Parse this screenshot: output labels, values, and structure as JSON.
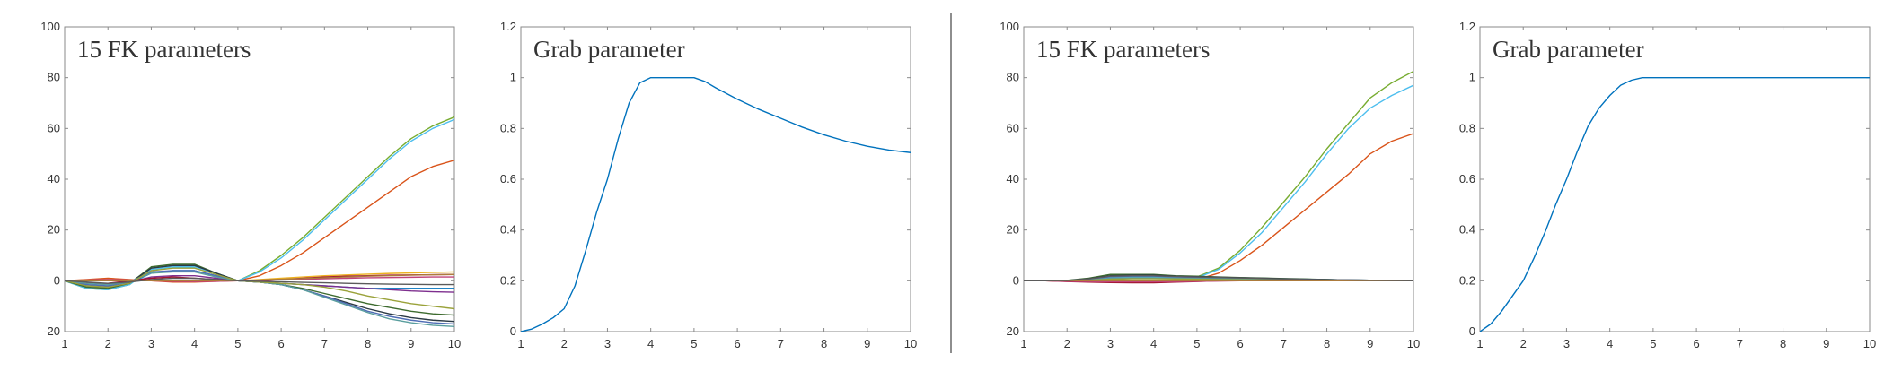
{
  "chart_data": [
    {
      "type": "line",
      "title": "15 FK parameters",
      "xlabel": "",
      "ylabel": "",
      "xlim": [
        1,
        10
      ],
      "ylim": [
        -20,
        100
      ],
      "xticks": [
        1,
        2,
        3,
        4,
        5,
        6,
        7,
        8,
        9,
        10
      ],
      "yticks": [
        -20,
        0,
        20,
        40,
        60,
        80,
        100
      ],
      "grid": false,
      "x": [
        1,
        1.5,
        2,
        2.5,
        3,
        3.5,
        4,
        4.5,
        5,
        5.5,
        6,
        6.5,
        7,
        7.5,
        8,
        8.5,
        9,
        9.5,
        10
      ],
      "series": [
        {
          "color": "#0072BD",
          "values": [
            0,
            -2,
            -2.5,
            -1,
            3,
            4,
            4,
            2,
            0,
            -0.5,
            -1,
            -1.5,
            -2,
            -2.5,
            -3,
            -3,
            -3,
            -3,
            -3
          ]
        },
        {
          "color": "#D95319",
          "values": [
            0,
            0.5,
            1,
            0.5,
            0,
            -0.5,
            -0.5,
            -0.2,
            0,
            2,
            6,
            11,
            17,
            23,
            29,
            35,
            41,
            45,
            47.5
          ]
        },
        {
          "color": "#EDB120",
          "values": [
            0,
            0.3,
            0.5,
            0.3,
            0.2,
            0,
            -0.2,
            0,
            0,
            0.5,
            1,
            1.5,
            2,
            2.3,
            2.6,
            2.9,
            3.1,
            3.3,
            3.5
          ]
        },
        {
          "color": "#7E2F8E",
          "values": [
            0,
            -1,
            -1.5,
            -0.5,
            1.5,
            2,
            2,
            1,
            0,
            -0.5,
            -1,
            -1.5,
            -2,
            -2.5,
            -3,
            -3.5,
            -4,
            -4.3,
            -4.5
          ]
        },
        {
          "color": "#77AC30",
          "values": [
            0,
            -3,
            -3.5,
            -1.5,
            5,
            6,
            6,
            3,
            0,
            4,
            10,
            17,
            25,
            33,
            41,
            49,
            56,
            61,
            64.5
          ]
        },
        {
          "color": "#4DBEEE",
          "values": [
            0,
            -3,
            -3.5,
            -1.5,
            4.5,
            5.5,
            5.5,
            3,
            0,
            3.5,
            9,
            16,
            24,
            32,
            40,
            48,
            55,
            60,
            63.5
          ]
        },
        {
          "color": "#A2142F",
          "values": [
            0,
            -1,
            -1,
            0,
            1,
            1.5,
            1,
            0.5,
            0,
            0,
            0.5,
            1,
            1.5,
            1.8,
            2,
            2.2,
            2.3,
            2.4,
            2.5
          ]
        },
        {
          "color": "#3D6B2F",
          "values": [
            0,
            -2.5,
            -3,
            -1,
            5.5,
            6.5,
            6.5,
            3,
            0,
            -0.5,
            -1.5,
            -3,
            -5,
            -7,
            -9,
            -10.5,
            -12,
            -13,
            -13.5
          ]
        },
        {
          "color": "#2B3A45",
          "values": [
            0,
            -2,
            -2.5,
            -1,
            5,
            6,
            6,
            3,
            0,
            -0.5,
            -1.5,
            -3.5,
            -6,
            -8.5,
            -11,
            -13,
            -14.5,
            -15.5,
            -16
          ]
        },
        {
          "color": "#4F6DB5",
          "values": [
            0,
            -1.5,
            -2,
            -0.5,
            3.5,
            4,
            4,
            2,
            0,
            -0.5,
            -1.5,
            -3.5,
            -6,
            -9,
            -12,
            -14,
            -15.5,
            -16.5,
            -17
          ]
        },
        {
          "color": "#5A9E9E",
          "values": [
            0,
            -1,
            -1.5,
            -0.5,
            3,
            3.5,
            3.5,
            1.5,
            0,
            -0.5,
            -1.5,
            -3.5,
            -6.5,
            -9.5,
            -12.5,
            -15,
            -16.5,
            -17.5,
            -18
          ]
        },
        {
          "color": "#9AA23A",
          "values": [
            0,
            -2,
            -2.5,
            -1,
            4,
            5,
            5,
            2.5,
            0,
            -0.5,
            -1,
            -1.5,
            -2.5,
            -4,
            -6,
            -7.5,
            -9,
            -10,
            -11
          ]
        },
        {
          "color": "#C1447A",
          "values": [
            0,
            0.3,
            0.5,
            0.3,
            0,
            -0.2,
            -0.3,
            -0.2,
            0,
            0.2,
            0.4,
            0.6,
            0.8,
            1,
            1.2,
            1.3,
            1.4,
            1.5,
            1.5
          ]
        },
        {
          "color": "#AD7B3C",
          "values": [
            0,
            0,
            0,
            0,
            0,
            0,
            0,
            0,
            0,
            0.3,
            0.6,
            0.9,
            1.2,
            1.5,
            1.8,
            2,
            2.2,
            2.4,
            2.5
          ]
        },
        {
          "color": "#5B5B5B",
          "values": [
            0,
            -0.5,
            -1,
            -0.5,
            0.5,
            1,
            1,
            0.5,
            0,
            -0.2,
            -0.4,
            -0.6,
            -0.8,
            -1,
            -1.2,
            -1.3,
            -1.4,
            -1.5,
            -1.5
          ]
        }
      ]
    },
    {
      "type": "line",
      "title": "Grab parameter",
      "xlabel": "",
      "ylabel": "",
      "xlim": [
        1,
        10
      ],
      "ylim": [
        0,
        1.2
      ],
      "xticks": [
        1,
        2,
        3,
        4,
        5,
        6,
        7,
        8,
        9,
        10
      ],
      "yticks": [
        0,
        0.2,
        0.4,
        0.6,
        0.8,
        1,
        1.2
      ],
      "grid": false,
      "x": [
        1,
        1.25,
        1.5,
        1.75,
        2,
        2.25,
        2.5,
        2.75,
        3,
        3.25,
        3.5,
        3.75,
        4,
        4.5,
        5,
        5.25,
        5.5,
        6,
        6.5,
        7,
        7.5,
        8,
        8.5,
        9,
        9.5,
        10
      ],
      "series": [
        {
          "color": "#0072BD",
          "values": [
            0,
            0.01,
            0.03,
            0.055,
            0.09,
            0.18,
            0.32,
            0.47,
            0.6,
            0.76,
            0.9,
            0.98,
            1,
            1,
            1,
            0.985,
            0.96,
            0.915,
            0.875,
            0.84,
            0.805,
            0.775,
            0.75,
            0.73,
            0.715,
            0.705
          ]
        }
      ]
    },
    {
      "type": "line",
      "title": "15 FK parameters",
      "xlabel": "",
      "ylabel": "",
      "xlim": [
        1,
        10
      ],
      "ylim": [
        -20,
        100
      ],
      "xticks": [
        1,
        2,
        3,
        4,
        5,
        6,
        7,
        8,
        9,
        10
      ],
      "yticks": [
        -20,
        0,
        20,
        40,
        60,
        80,
        100
      ],
      "grid": false,
      "x": [
        1,
        1.5,
        2,
        2.5,
        3,
        3.5,
        4,
        4.5,
        5,
        5.5,
        6,
        6.5,
        7,
        7.5,
        8,
        8.5,
        9,
        9.5,
        10
      ],
      "series": [
        {
          "color": "#0072BD",
          "values": [
            0,
            0,
            0,
            0.5,
            1.5,
            2,
            2,
            1.8,
            1.5,
            1.3,
            1.2,
            1,
            0.8,
            0.6,
            0.5,
            0.3,
            0.2,
            0.1,
            0
          ]
        },
        {
          "color": "#D95319",
          "values": [
            0,
            0,
            -0.2,
            -0.4,
            -0.5,
            -0.5,
            -0.5,
            0,
            0.5,
            3,
            8,
            14,
            21,
            28,
            35,
            42,
            50,
            55,
            58
          ]
        },
        {
          "color": "#EDB120",
          "values": [
            0,
            0,
            0,
            0,
            0,
            0,
            0,
            0,
            0,
            0,
            0,
            0,
            0,
            0,
            0,
            0,
            0,
            0,
            0
          ]
        },
        {
          "color": "#7E2F8E",
          "values": [
            0,
            0,
            0,
            0.3,
            0.8,
            1,
            1,
            0.9,
            0.8,
            0.7,
            0.6,
            0.5,
            0.4,
            0.3,
            0.2,
            0.1,
            0.1,
            0,
            0
          ]
        },
        {
          "color": "#77AC30",
          "values": [
            0,
            0,
            0.2,
            0.5,
            1.5,
            2,
            2,
            1.5,
            1.5,
            5,
            12,
            21,
            31,
            41,
            52,
            62,
            72,
            78,
            82.5
          ]
        },
        {
          "color": "#4DBEEE",
          "values": [
            0,
            0,
            0.1,
            0.4,
            1.2,
            1.5,
            1.5,
            1.2,
            1.2,
            4.5,
            11,
            19,
            29,
            39,
            50,
            60,
            68,
            73,
            77
          ]
        },
        {
          "color": "#A2142F",
          "values": [
            0,
            0,
            -0.3,
            -0.5,
            -0.7,
            -0.8,
            -0.8,
            -0.5,
            -0.3,
            0,
            0,
            0,
            0,
            0,
            0,
            0,
            0,
            0,
            0
          ]
        },
        {
          "color": "#3D6B2F",
          "values": [
            0,
            0,
            0.2,
            1,
            2.5,
            2.5,
            2.5,
            2,
            1.8,
            1.5,
            1.3,
            1.1,
            0.9,
            0.7,
            0.5,
            0.3,
            0.2,
            0.1,
            0
          ]
        },
        {
          "color": "#2B3A45",
          "values": [
            0,
            0,
            0.1,
            0.8,
            2,
            2.2,
            2.2,
            1.8,
            1.6,
            1.4,
            1.2,
            1,
            0.8,
            0.6,
            0.5,
            0.3,
            0.2,
            0.1,
            0
          ]
        },
        {
          "color": "#4F6DB5",
          "values": [
            0,
            0,
            0.1,
            0.6,
            1.6,
            1.8,
            1.8,
            1.5,
            1.3,
            1.1,
            0.9,
            0.7,
            0.6,
            0.5,
            0.4,
            0.3,
            0.2,
            0.1,
            0
          ]
        },
        {
          "color": "#5A9E9E",
          "values": [
            0,
            0,
            0,
            0.3,
            1,
            1.2,
            1.2,
            1,
            0.9,
            0.8,
            0.7,
            0.6,
            0.5,
            0.4,
            0.3,
            0.2,
            0.1,
            0.1,
            0
          ]
        },
        {
          "color": "#9AA23A",
          "values": [
            0,
            0,
            0,
            0.2,
            0.6,
            0.8,
            0.8,
            0.7,
            0.6,
            0.5,
            0.4,
            0.3,
            0.3,
            0.2,
            0.1,
            0.1,
            0,
            0,
            0
          ]
        },
        {
          "color": "#C1447A",
          "values": [
            0,
            0,
            -0.2,
            -0.3,
            -0.4,
            -0.4,
            -0.4,
            -0.3,
            -0.2,
            -0.1,
            0,
            0,
            0,
            0,
            0,
            0,
            0,
            0,
            0
          ]
        },
        {
          "color": "#AD7B3C",
          "values": [
            0,
            0,
            0,
            0,
            0,
            0,
            0,
            0,
            0,
            0,
            0,
            0,
            0,
            0,
            0,
            0,
            0,
            0,
            0
          ]
        },
        {
          "color": "#5B5B5B",
          "values": [
            0,
            0,
            0.1,
            0.7,
            1.8,
            2,
            2,
            1.7,
            1.5,
            1.3,
            1.1,
            0.9,
            0.7,
            0.5,
            0.4,
            0.3,
            0.2,
            0.1,
            0
          ]
        }
      ]
    },
    {
      "type": "line",
      "title": "Grab parameter",
      "xlabel": "",
      "ylabel": "",
      "xlim": [
        1,
        10
      ],
      "ylim": [
        0,
        1.2
      ],
      "xticks": [
        1,
        2,
        3,
        4,
        5,
        6,
        7,
        8,
        9,
        10
      ],
      "yticks": [
        0,
        0.2,
        0.4,
        0.6,
        0.8,
        1,
        1.2
      ],
      "grid": false,
      "x": [
        1,
        1.25,
        1.5,
        1.75,
        2,
        2.25,
        2.5,
        2.75,
        3,
        3.25,
        3.5,
        3.75,
        4,
        4.25,
        4.5,
        4.75,
        5,
        5.5,
        6,
        7,
        8,
        9,
        10
      ],
      "series": [
        {
          "color": "#0072BD",
          "values": [
            0,
            0.03,
            0.08,
            0.14,
            0.2,
            0.29,
            0.39,
            0.5,
            0.6,
            0.71,
            0.81,
            0.88,
            0.93,
            0.97,
            0.99,
            1,
            1,
            1,
            1,
            1,
            1,
            1,
            1
          ]
        }
      ]
    }
  ]
}
